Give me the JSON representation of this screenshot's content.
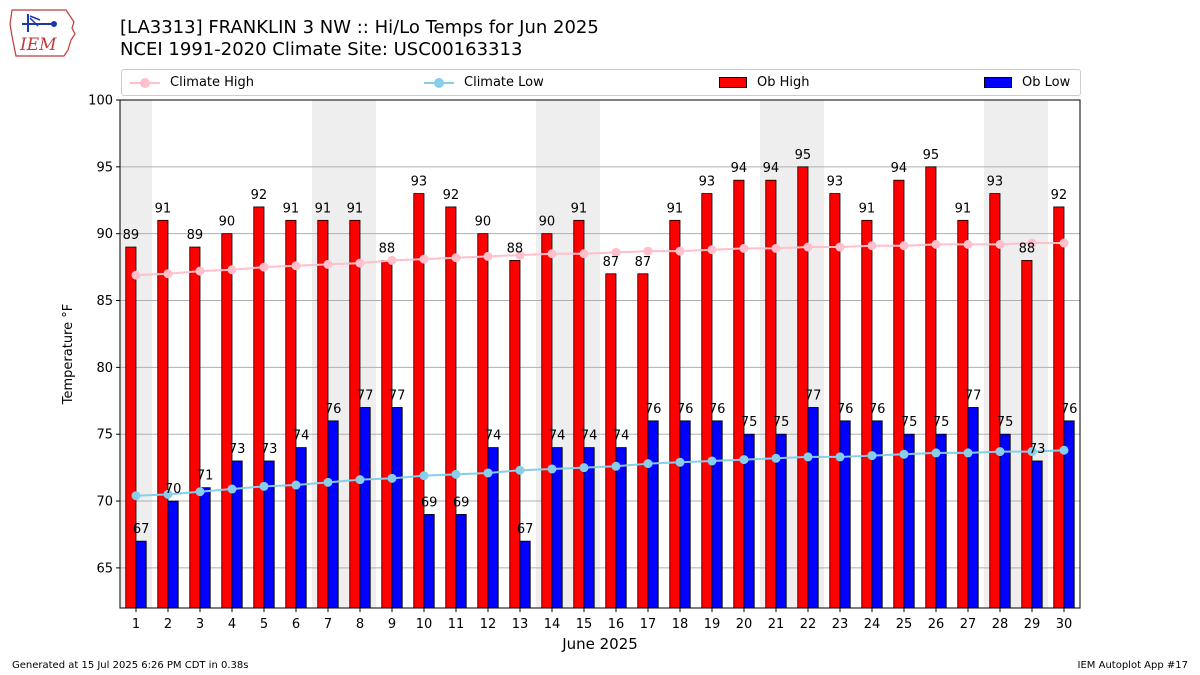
{
  "header": {
    "title_line1": "[LA3313] FRANKLIN 3 NW :: Hi/Lo Temps for Jun 2025",
    "title_line2": "NCEI 1991-2020 Climate Site: USC00163313",
    "logo_text": "IEM"
  },
  "legend": {
    "items": [
      {
        "label": "Climate High",
        "kind": "line",
        "color": "#ffc0cb"
      },
      {
        "label": "Climate Low",
        "kind": "line",
        "color": "#87ceeb"
      },
      {
        "label": "Ob High",
        "kind": "bar",
        "color": "#ff0000"
      },
      {
        "label": "Ob Low",
        "kind": "bar",
        "color": "#0000ff"
      }
    ]
  },
  "footer": {
    "left": "Generated at 15 Jul 2025 6:26 PM CDT in 0.38s",
    "right": "IEM Autoplot App #17"
  },
  "chart_data": {
    "type": "bar",
    "xlabel": "June 2025",
    "ylabel": "Temperature °F",
    "ylim": [
      62,
      100
    ],
    "yticks": [
      65,
      70,
      75,
      80,
      85,
      90,
      95,
      100
    ],
    "categories": [
      "1",
      "2",
      "3",
      "4",
      "5",
      "6",
      "7",
      "8",
      "9",
      "10",
      "11",
      "12",
      "13",
      "14",
      "15",
      "16",
      "17",
      "18",
      "19",
      "20",
      "21",
      "22",
      "23",
      "24",
      "25",
      "26",
      "27",
      "28",
      "29",
      "30"
    ],
    "weekend_days": [
      1,
      7,
      8,
      14,
      15,
      21,
      22,
      28,
      29
    ],
    "series": [
      {
        "name": "Ob High",
        "type": "bar",
        "color": "#ff0000",
        "values": [
          89,
          91,
          89,
          90,
          92,
          91,
          91,
          91,
          88,
          93,
          92,
          90,
          88,
          90,
          91,
          87,
          87,
          91,
          93,
          94,
          94,
          95,
          93,
          91,
          94,
          95,
          91,
          93,
          88,
          92
        ]
      },
      {
        "name": "Ob Low",
        "type": "bar",
        "color": "#0000ff",
        "values": [
          67,
          70,
          71,
          73,
          73,
          74,
          76,
          77,
          77,
          69,
          69,
          74,
          67,
          74,
          74,
          74,
          76,
          76,
          76,
          75,
          75,
          77,
          76,
          76,
          75,
          75,
          77,
          75,
          73,
          76
        ]
      },
      {
        "name": "Climate High",
        "type": "line",
        "color": "#ffc0cb",
        "values": [
          86.9,
          87.0,
          87.2,
          87.3,
          87.5,
          87.6,
          87.7,
          87.8,
          88.0,
          88.1,
          88.2,
          88.3,
          88.4,
          88.5,
          88.5,
          88.6,
          88.7,
          88.7,
          88.8,
          88.9,
          88.9,
          89.0,
          89.0,
          89.1,
          89.1,
          89.2,
          89.2,
          89.2,
          89.3,
          89.3
        ]
      },
      {
        "name": "Climate Low",
        "type": "line",
        "color": "#87ceeb",
        "values": [
          70.4,
          70.5,
          70.7,
          70.9,
          71.1,
          71.2,
          71.4,
          71.6,
          71.7,
          71.9,
          72.0,
          72.1,
          72.3,
          72.4,
          72.5,
          72.6,
          72.8,
          72.9,
          73.0,
          73.1,
          73.2,
          73.3,
          73.3,
          73.4,
          73.5,
          73.6,
          73.6,
          73.7,
          73.7,
          73.8
        ]
      }
    ]
  }
}
